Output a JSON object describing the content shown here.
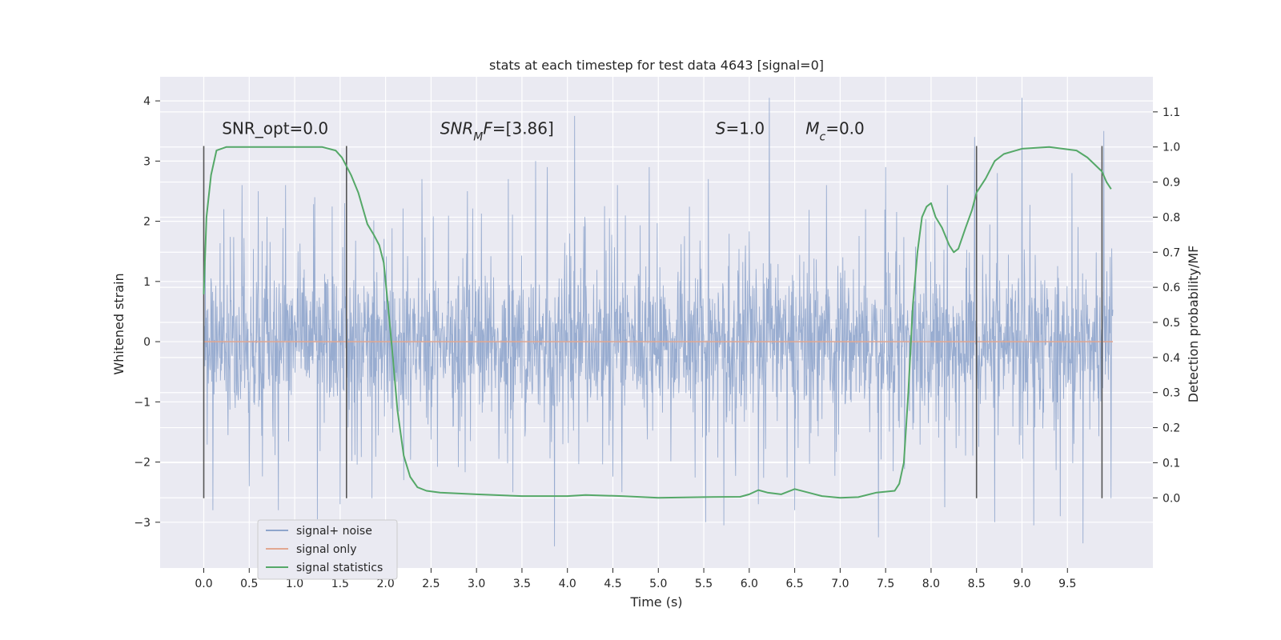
{
  "chart_data": {
    "type": "line",
    "title": "stats at each timestep for test data 4643 [signal=0]",
    "xlabel": "Time (s)",
    "ylabel": "Whitened strain",
    "y2label": "Detection probability/MF",
    "xlim": [
      -0.48,
      10.44
    ],
    "ylim": [
      -3.76,
      4.4
    ],
    "y2lim": [
      -0.2,
      1.2
    ],
    "x_ticks": [
      0.0,
      0.5,
      1.0,
      1.5,
      2.0,
      2.5,
      3.0,
      3.5,
      4.0,
      4.5,
      5.0,
      5.5,
      6.0,
      6.5,
      7.0,
      7.5,
      8.0,
      8.5,
      9.0,
      9.5
    ],
    "x_tick_labels": [
      "0.0",
      "0.5",
      "1.0",
      "1.5",
      "2.0",
      "2.5",
      "3.0",
      "3.5",
      "4.0",
      "4.5",
      "5.0",
      "5.5",
      "6.0",
      "6.5",
      "7.0",
      "7.5",
      "8.0",
      "8.5",
      "9.0",
      "9.5"
    ],
    "y_ticks": [
      -3,
      -2,
      -1,
      0,
      1,
      2,
      3,
      4
    ],
    "y_tick_labels": [
      "−3",
      "−2",
      "−1",
      "0",
      "1",
      "2",
      "3",
      "4"
    ],
    "y2_ticks": [
      0.0,
      0.1,
      0.2,
      0.3,
      0.4,
      0.5,
      0.6,
      0.7,
      0.8,
      0.9,
      1.0,
      1.1
    ],
    "y2_tick_labels": [
      "0.0",
      "0.1",
      "0.2",
      "0.3",
      "0.4",
      "0.5",
      "0.6",
      "0.7",
      "0.8",
      "0.9",
      "1.0",
      "1.1"
    ],
    "grid": true,
    "legend_position": "lower-left",
    "colors": {
      "plot_bg": "#eaeaf2",
      "grid": "#ffffff",
      "noise": "#8fa5cc",
      "signal": "#e2a791",
      "stats": "#55a868",
      "vlines": "#555555"
    },
    "series": [
      {
        "name": "signal+ noise",
        "kind": "noise-band",
        "x_range": [
          0.0,
          10.0
        ],
        "band_half_width": 1.0,
        "peaks_up": [
          [
            0.22,
            2.2
          ],
          [
            0.42,
            2.6
          ],
          [
            0.6,
            2.5
          ],
          [
            0.9,
            2.6
          ],
          [
            1.22,
            2.4
          ],
          [
            1.55,
            2.3
          ],
          [
            2.4,
            2.7
          ],
          [
            2.9,
            2.5
          ],
          [
            3.35,
            2.7
          ],
          [
            3.65,
            3.0
          ],
          [
            3.78,
            2.9
          ],
          [
            4.08,
            3.75
          ],
          [
            4.55,
            2.6
          ],
          [
            4.9,
            2.9
          ],
          [
            5.55,
            2.7
          ],
          [
            5.72,
            3.3
          ],
          [
            6.22,
            4.05
          ],
          [
            6.85,
            2.6
          ],
          [
            7.5,
            2.9
          ],
          [
            8.18,
            2.6
          ],
          [
            8.48,
            3.4
          ],
          [
            8.73,
            2.8
          ],
          [
            9.0,
            4.05
          ],
          [
            9.55,
            2.8
          ],
          [
            9.9,
            3.5
          ]
        ],
        "peaks_down": [
          [
            0.1,
            -2.8
          ],
          [
            0.5,
            -2.4
          ],
          [
            0.82,
            -2.8
          ],
          [
            1.25,
            -2.95
          ],
          [
            1.5,
            -2.7
          ],
          [
            1.85,
            -2.6
          ],
          [
            2.2,
            -2.3
          ],
          [
            3.4,
            -2.5
          ],
          [
            3.86,
            -3.4
          ],
          [
            4.6,
            -2.5
          ],
          [
            5.52,
            -3.0
          ],
          [
            5.72,
            -3.05
          ],
          [
            6.1,
            -2.7
          ],
          [
            6.5,
            -2.8
          ],
          [
            7.42,
            -3.25
          ],
          [
            8.15,
            -2.75
          ],
          [
            8.7,
            -3.0
          ],
          [
            9.13,
            -3.05
          ],
          [
            9.42,
            -2.9
          ],
          [
            9.67,
            -3.35
          ],
          [
            9.98,
            -2.6
          ]
        ],
        "points": [
          [
            0.0,
            0.1
          ],
          [
            0.5,
            -0.4
          ],
          [
            1.0,
            0.6
          ],
          [
            1.5,
            -0.7
          ],
          [
            2.0,
            0.3
          ],
          [
            2.5,
            -0.2
          ],
          [
            3.0,
            0.8
          ],
          [
            3.5,
            -0.5
          ],
          [
            4.0,
            0.4
          ],
          [
            4.5,
            -0.9
          ],
          [
            5.0,
            0.2
          ],
          [
            5.5,
            -0.3
          ],
          [
            6.0,
            0.7
          ],
          [
            6.5,
            -0.6
          ],
          [
            7.0,
            0.5
          ],
          [
            7.5,
            -0.1
          ],
          [
            8.0,
            0.9
          ],
          [
            8.5,
            -0.8
          ],
          [
            9.0,
            0.3
          ],
          [
            9.5,
            -0.4
          ],
          [
            10.0,
            0.0
          ]
        ]
      },
      {
        "name": "signal only",
        "kind": "line",
        "points": [
          [
            0.0,
            0.0
          ],
          [
            10.0,
            0.0
          ]
        ]
      },
      {
        "name": "signal statistics",
        "kind": "line",
        "axis": "right",
        "points": [
          [
            0.0,
            0.58
          ],
          [
            0.03,
            0.8
          ],
          [
            0.08,
            0.92
          ],
          [
            0.14,
            0.99
          ],
          [
            0.25,
            1.0
          ],
          [
            0.6,
            1.0
          ],
          [
            1.0,
            1.0
          ],
          [
            1.3,
            1.0
          ],
          [
            1.45,
            0.99
          ],
          [
            1.52,
            0.97
          ],
          [
            1.62,
            0.92
          ],
          [
            1.7,
            0.87
          ],
          [
            1.8,
            0.78
          ],
          [
            1.87,
            0.75
          ],
          [
            1.93,
            0.72
          ],
          [
            1.98,
            0.67
          ],
          [
            2.03,
            0.54
          ],
          [
            2.08,
            0.4
          ],
          [
            2.13,
            0.25
          ],
          [
            2.2,
            0.12
          ],
          [
            2.27,
            0.06
          ],
          [
            2.35,
            0.03
          ],
          [
            2.45,
            0.02
          ],
          [
            2.6,
            0.015
          ],
          [
            3.0,
            0.01
          ],
          [
            3.5,
            0.005
          ],
          [
            4.0,
            0.005
          ],
          [
            4.2,
            0.008
          ],
          [
            4.6,
            0.005
          ],
          [
            5.0,
            0.0
          ],
          [
            5.5,
            0.002
          ],
          [
            5.9,
            0.003
          ],
          [
            6.0,
            0.01
          ],
          [
            6.1,
            0.022
          ],
          [
            6.2,
            0.015
          ],
          [
            6.35,
            0.01
          ],
          [
            6.5,
            0.025
          ],
          [
            6.65,
            0.015
          ],
          [
            6.8,
            0.005
          ],
          [
            7.0,
            0.0
          ],
          [
            7.2,
            0.002
          ],
          [
            7.4,
            0.015
          ],
          [
            7.6,
            0.02
          ],
          [
            7.65,
            0.04
          ],
          [
            7.7,
            0.1
          ],
          [
            7.75,
            0.3
          ],
          [
            7.8,
            0.55
          ],
          [
            7.85,
            0.7
          ],
          [
            7.9,
            0.8
          ],
          [
            7.95,
            0.83
          ],
          [
            8.0,
            0.84
          ],
          [
            8.05,
            0.8
          ],
          [
            8.12,
            0.77
          ],
          [
            8.2,
            0.72
          ],
          [
            8.25,
            0.7
          ],
          [
            8.3,
            0.71
          ],
          [
            8.38,
            0.77
          ],
          [
            8.45,
            0.82
          ],
          [
            8.5,
            0.87
          ],
          [
            8.6,
            0.91
          ],
          [
            8.7,
            0.96
          ],
          [
            8.8,
            0.98
          ],
          [
            9.0,
            0.995
          ],
          [
            9.3,
            1.0
          ],
          [
            9.6,
            0.99
          ],
          [
            9.72,
            0.97
          ],
          [
            9.8,
            0.95
          ],
          [
            9.88,
            0.93
          ],
          [
            9.93,
            0.9
          ],
          [
            9.98,
            0.88
          ]
        ]
      }
    ],
    "vlines": [
      {
        "x": 0.0,
        "y_from": -2.6,
        "y_to": 3.25
      },
      {
        "x": 1.57,
        "y_from": -2.6,
        "y_to": 3.25
      },
      {
        "x": 8.5,
        "y_from": -2.6,
        "y_to": 3.25
      },
      {
        "x": 9.88,
        "y_from": -2.6,
        "y_to": 3.25
      }
    ],
    "annotations": [
      {
        "text_parts": [
          {
            "t": "SNR_opt=0.0",
            "i": false
          }
        ],
        "x": 0.2,
        "y": 3.45
      },
      {
        "text_parts": [
          {
            "t": "SNR",
            "i": true
          },
          {
            "t": "M",
            "i": true,
            "sub": true
          },
          {
            "t": "F",
            "i": true
          },
          {
            "t": "=[3.86]",
            "i": false
          }
        ],
        "x": 2.6,
        "y": 3.45
      },
      {
        "text_parts": [
          {
            "t": "S",
            "i": true
          },
          {
            "t": "=1.0",
            "i": false
          }
        ],
        "x": 5.63,
        "y": 3.45
      },
      {
        "text_parts": [
          {
            "t": "M",
            "i": true
          },
          {
            "t": "c",
            "i": true,
            "sub": true
          },
          {
            "t": "=0.0",
            "i": false
          }
        ],
        "x": 6.62,
        "y": 3.45
      }
    ]
  }
}
